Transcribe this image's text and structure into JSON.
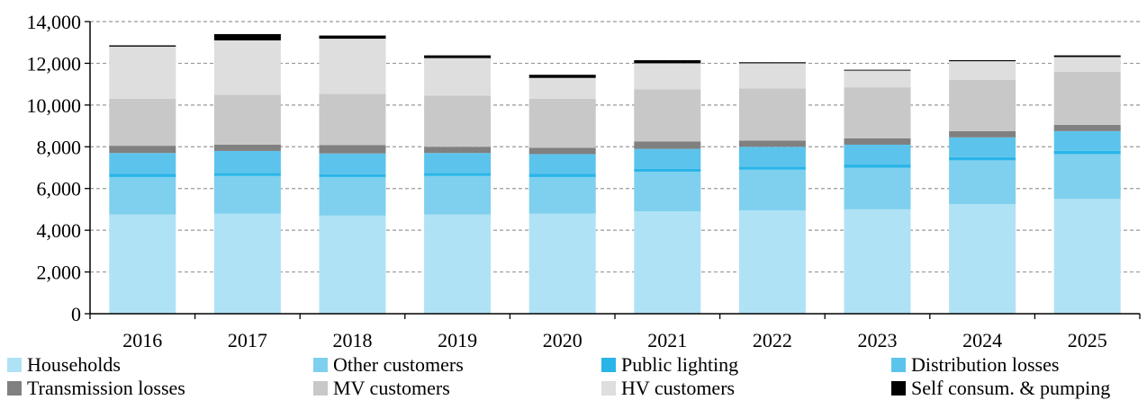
{
  "chart_data": {
    "type": "bar",
    "stacked": true,
    "categories": [
      "2016",
      "2017",
      "2018",
      "2019",
      "2020",
      "2021",
      "2022",
      "2023",
      "2024",
      "2025"
    ],
    "y_ticks": [
      "0",
      "2,000",
      "4,000",
      "6,000",
      "8,000",
      "10,000",
      "12,000",
      "14,000"
    ],
    "ylim": [
      0,
      14000
    ],
    "grid": "horizontal dashed",
    "legend_position": "bottom",
    "series": [
      {
        "name": "Households",
        "color": "#b0e2f5",
        "values": [
          4750,
          4800,
          4700,
          4750,
          4800,
          4900,
          4950,
          5000,
          5250,
          5500
        ]
      },
      {
        "name": "Other customers",
        "color": "#7fd0ee",
        "values": [
          1800,
          1800,
          1850,
          1850,
          1750,
          1900,
          1950,
          2000,
          2100,
          2150
        ]
      },
      {
        "name": "Public lighting",
        "color": "#29b5e8",
        "values": [
          150,
          150,
          130,
          150,
          150,
          150,
          150,
          150,
          150,
          150
        ]
      },
      {
        "name": "Distribution losses",
        "color": "#5cc4ec",
        "values": [
          1000,
          1050,
          1000,
          950,
          950,
          950,
          950,
          950,
          950,
          950
        ]
      },
      {
        "name": "Transmission losses",
        "color": "#808080",
        "values": [
          350,
          300,
          400,
          300,
          300,
          350,
          300,
          300,
          300,
          300
        ]
      },
      {
        "name": "MV customers",
        "color": "#c8c8c8",
        "values": [
          2250,
          2400,
          2450,
          2450,
          2350,
          2500,
          2500,
          2450,
          2450,
          2550
        ]
      },
      {
        "name": "HV customers",
        "color": "#dedede",
        "values": [
          2500,
          2600,
          2650,
          1800,
          1000,
          1250,
          1200,
          800,
          900,
          700
        ]
      },
      {
        "name": "Self consum. & pumping",
        "color": "#000000",
        "values": [
          60,
          300,
          150,
          130,
          150,
          150,
          50,
          40,
          50,
          80
        ]
      }
    ]
  }
}
